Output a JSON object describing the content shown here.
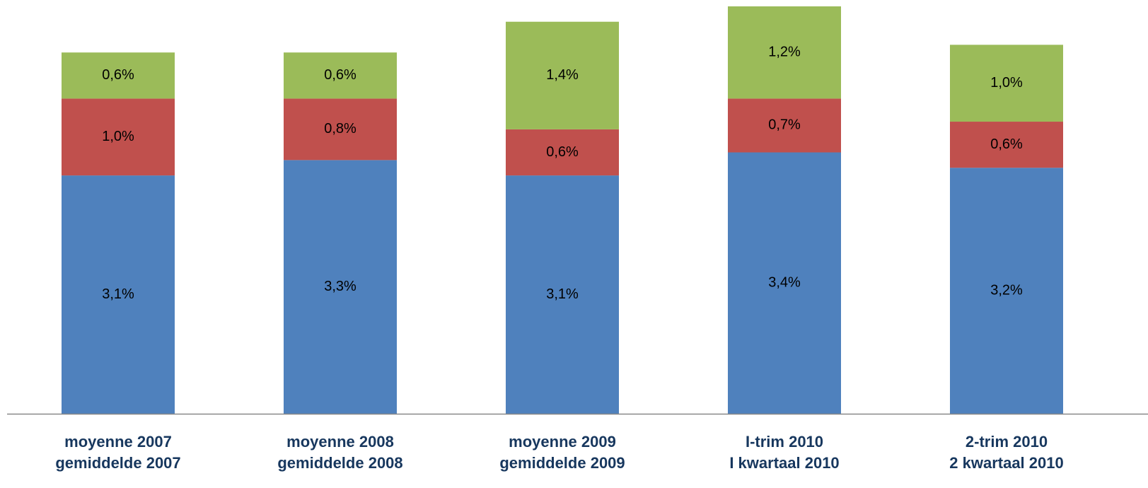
{
  "chart_data": {
    "type": "stacked-bar",
    "categories": [
      [
        "moyenne 2007",
        "gemiddelde 2007"
      ],
      [
        "moyenne 2008",
        "gemiddelde 2008"
      ],
      [
        "moyenne 2009",
        "gemiddelde 2009"
      ],
      [
        "I-trim 2010",
        "I kwartaal 2010"
      ],
      [
        "2-trim 2010",
        "2 kwartaal 2010"
      ]
    ],
    "series": [
      {
        "color": "#4f81bd",
        "values": [
          3.1,
          3.3,
          3.1,
          3.4,
          3.2
        ],
        "value_labels": [
          "3,1%",
          "3,3%",
          "3,1%",
          "3,4%",
          "3,2%"
        ]
      },
      {
        "color": "#c0504d",
        "values": [
          1.0,
          0.8,
          0.6,
          0.7,
          0.6
        ],
        "value_labels": [
          "1,0%",
          "0,8%",
          "0,6%",
          "0,7%",
          "0,6%"
        ]
      },
      {
        "color": "#9bbb59",
        "values": [
          0.6,
          0.6,
          1.4,
          1.2,
          1.0
        ],
        "value_labels": [
          "0,6%",
          "0,6%",
          "1,4%",
          "1,2%",
          "1,0%"
        ]
      }
    ]
  }
}
